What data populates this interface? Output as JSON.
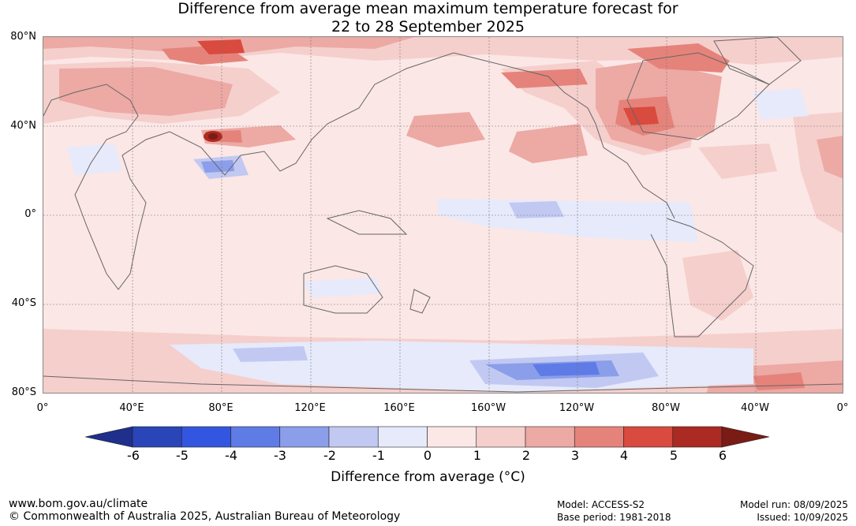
{
  "title": {
    "line1": "Difference from average mean maximum temperature forecast for",
    "line2": "22 to 28 September 2025"
  },
  "lat_labels": [
    "80°N",
    "40°N",
    "0°",
    "40°S",
    "80°S"
  ],
  "lon_labels": [
    "0°",
    "40°E",
    "80°E",
    "120°E",
    "160°E",
    "160°W",
    "120°W",
    "80°W",
    "40°W",
    "0°"
  ],
  "colorbar": {
    "ticks": [
      "-6",
      "-5",
      "-4",
      "-3",
      "-2",
      "-1",
      "0",
      "1",
      "2",
      "3",
      "4",
      "5",
      "6"
    ],
    "colors": [
      "#1f2f8c",
      "#2a45b8",
      "#3356e0",
      "#5f7be6",
      "#8b9eea",
      "#c1c9f2",
      "#e6eafb",
      "#fbe7e6",
      "#f5cfcc",
      "#eda9a4",
      "#e5837b",
      "#d94a3f",
      "#ab2a22",
      "#7a1b16"
    ],
    "label": "Difference from average (°C)"
  },
  "footer": {
    "url": "www.bom.gov.au/climate",
    "copyright": "© Commonwealth of Australia 2025, Australian Bureau of Meteorology",
    "model": "Model: ACCESS-S2",
    "base_period": "Base period: 1981-2018",
    "model_run": "Model run: 08/09/2025",
    "issued": "Issued: 10/09/2025"
  }
}
